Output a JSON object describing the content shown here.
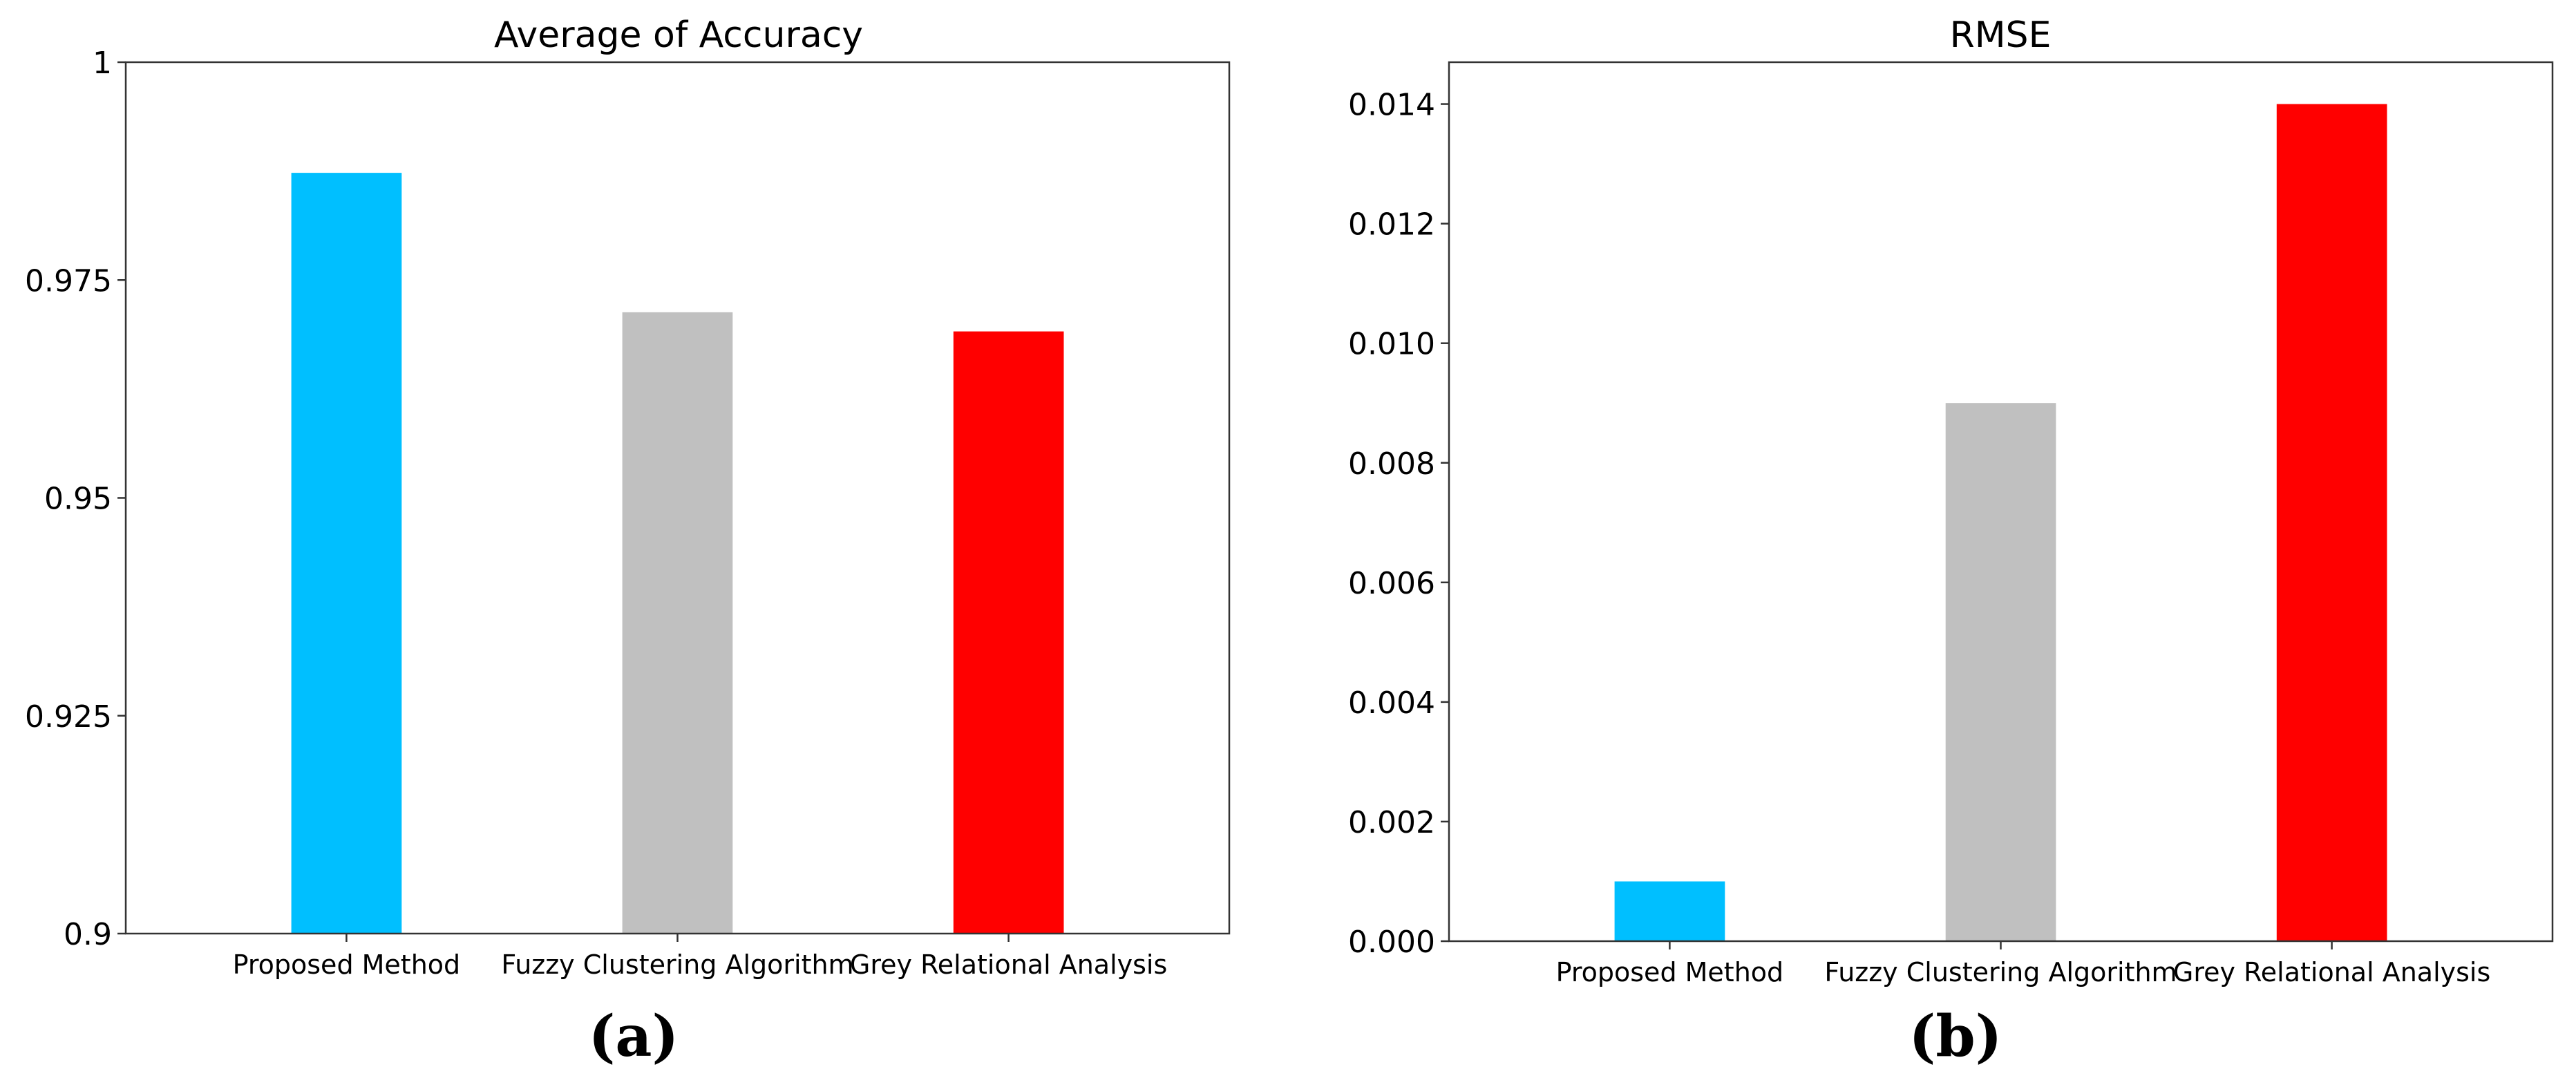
{
  "chart_data": [
    {
      "type": "bar",
      "title": "Average of Accuracy",
      "panel_label": "(a)",
      "categories": [
        "Proposed Method",
        "Fuzzy Clustering Algorithm",
        "Grey Relational Analysis"
      ],
      "values": [
        0.9873,
        0.9713,
        0.9691
      ],
      "colors": [
        "#00bfff",
        "#c0c0c0",
        "#ff0000"
      ],
      "xlabel": "",
      "ylabel": "",
      "ylim": [
        0.9,
        1.0
      ],
      "yticks": [
        0.9,
        0.925,
        0.95,
        0.975,
        1.0
      ],
      "ytick_labels": [
        "0.9",
        "0.925",
        "0.95",
        "0.975",
        "1"
      ],
      "grid": false,
      "legend": false
    },
    {
      "type": "bar",
      "title": "RMSE",
      "panel_label": "(b)",
      "categories": [
        "Proposed Method",
        "Fuzzy Clustering Algorithm",
        "Grey Relational Analysis"
      ],
      "values": [
        0.001,
        0.009,
        0.014
      ],
      "colors": [
        "#00bfff",
        "#c0c0c0",
        "#ff0000"
      ],
      "xlabel": "",
      "ylabel": "",
      "ylim": [
        0.0,
        0.0147
      ],
      "yticks": [
        0.0,
        0.002,
        0.004,
        0.006,
        0.008,
        0.01,
        0.012,
        0.014
      ],
      "ytick_labels": [
        "0.000",
        "0.002",
        "0.004",
        "0.006",
        "0.008",
        "0.010",
        "0.012",
        "0.014"
      ],
      "grid": false,
      "legend": false
    }
  ]
}
